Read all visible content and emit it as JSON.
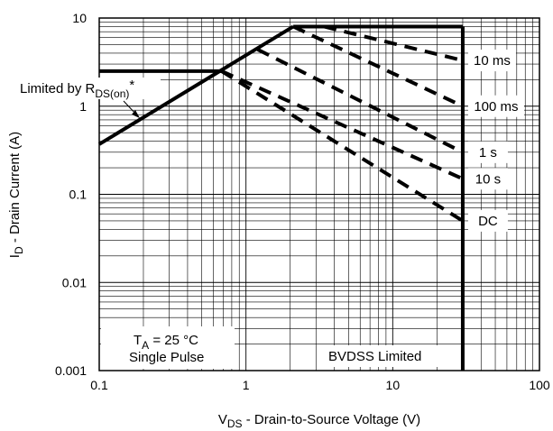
{
  "chart_data": {
    "type": "line",
    "xscale": "log",
    "yscale": "log",
    "xlim": [
      0.1,
      100
    ],
    "ylim": [
      0.001,
      10
    ],
    "grid": true,
    "x_ticks": [
      "0.1",
      "1",
      "10",
      "100"
    ],
    "y_ticks": [
      "10",
      "1",
      "0.1",
      "0.01",
      "0.001"
    ],
    "xlabel": {
      "main": "V",
      "sub": "DS",
      "rest": " - Drain-to-Source Voltage (V)"
    },
    "ylabel": {
      "main": "I",
      "sub": "D",
      "rest": " - Drain Current (A)"
    },
    "limit_lines": {
      "rds_on": {
        "x": [
          0.1,
          2.1
        ],
        "y": [
          0.37,
          8.0
        ]
      },
      "current_limit": {
        "x": [
          2.1,
          30
        ],
        "y": [
          8.0,
          8.0
        ]
      },
      "pulsed_current": {
        "x": [
          0.1,
          0.68
        ],
        "y": [
          2.5,
          2.5
        ]
      },
      "bvdss": {
        "x": [
          30,
          30
        ],
        "y": [
          0.001,
          8.0
        ]
      }
    },
    "series": [
      {
        "name": "10 ms",
        "x": [
          3.4,
          30
        ],
        "y": [
          8.0,
          3.3
        ]
      },
      {
        "name": "100 ms",
        "x": [
          2.1,
          30
        ],
        "y": [
          8.0,
          1.0
        ]
      },
      {
        "name": "1 s",
        "x": [
          1.2,
          30
        ],
        "y": [
          4.4,
          0.3
        ]
      },
      {
        "name": "10 s",
        "x": [
          0.68,
          30
        ],
        "y": [
          2.5,
          0.15
        ]
      },
      {
        "name": "DC",
        "x": [
          0.68,
          30
        ],
        "y": [
          2.5,
          0.05
        ]
      }
    ],
    "annotations": {
      "limited_by": {
        "prefix": "Limited by R",
        "sub": "DS(on)",
        "suffix": "*"
      },
      "conditions": {
        "ta_main": "T",
        "ta_sub": "A",
        "ta_rest": " = 25 °C",
        "pulse": "Single Pulse"
      },
      "bvdss": "BVDSS Limited"
    }
  }
}
